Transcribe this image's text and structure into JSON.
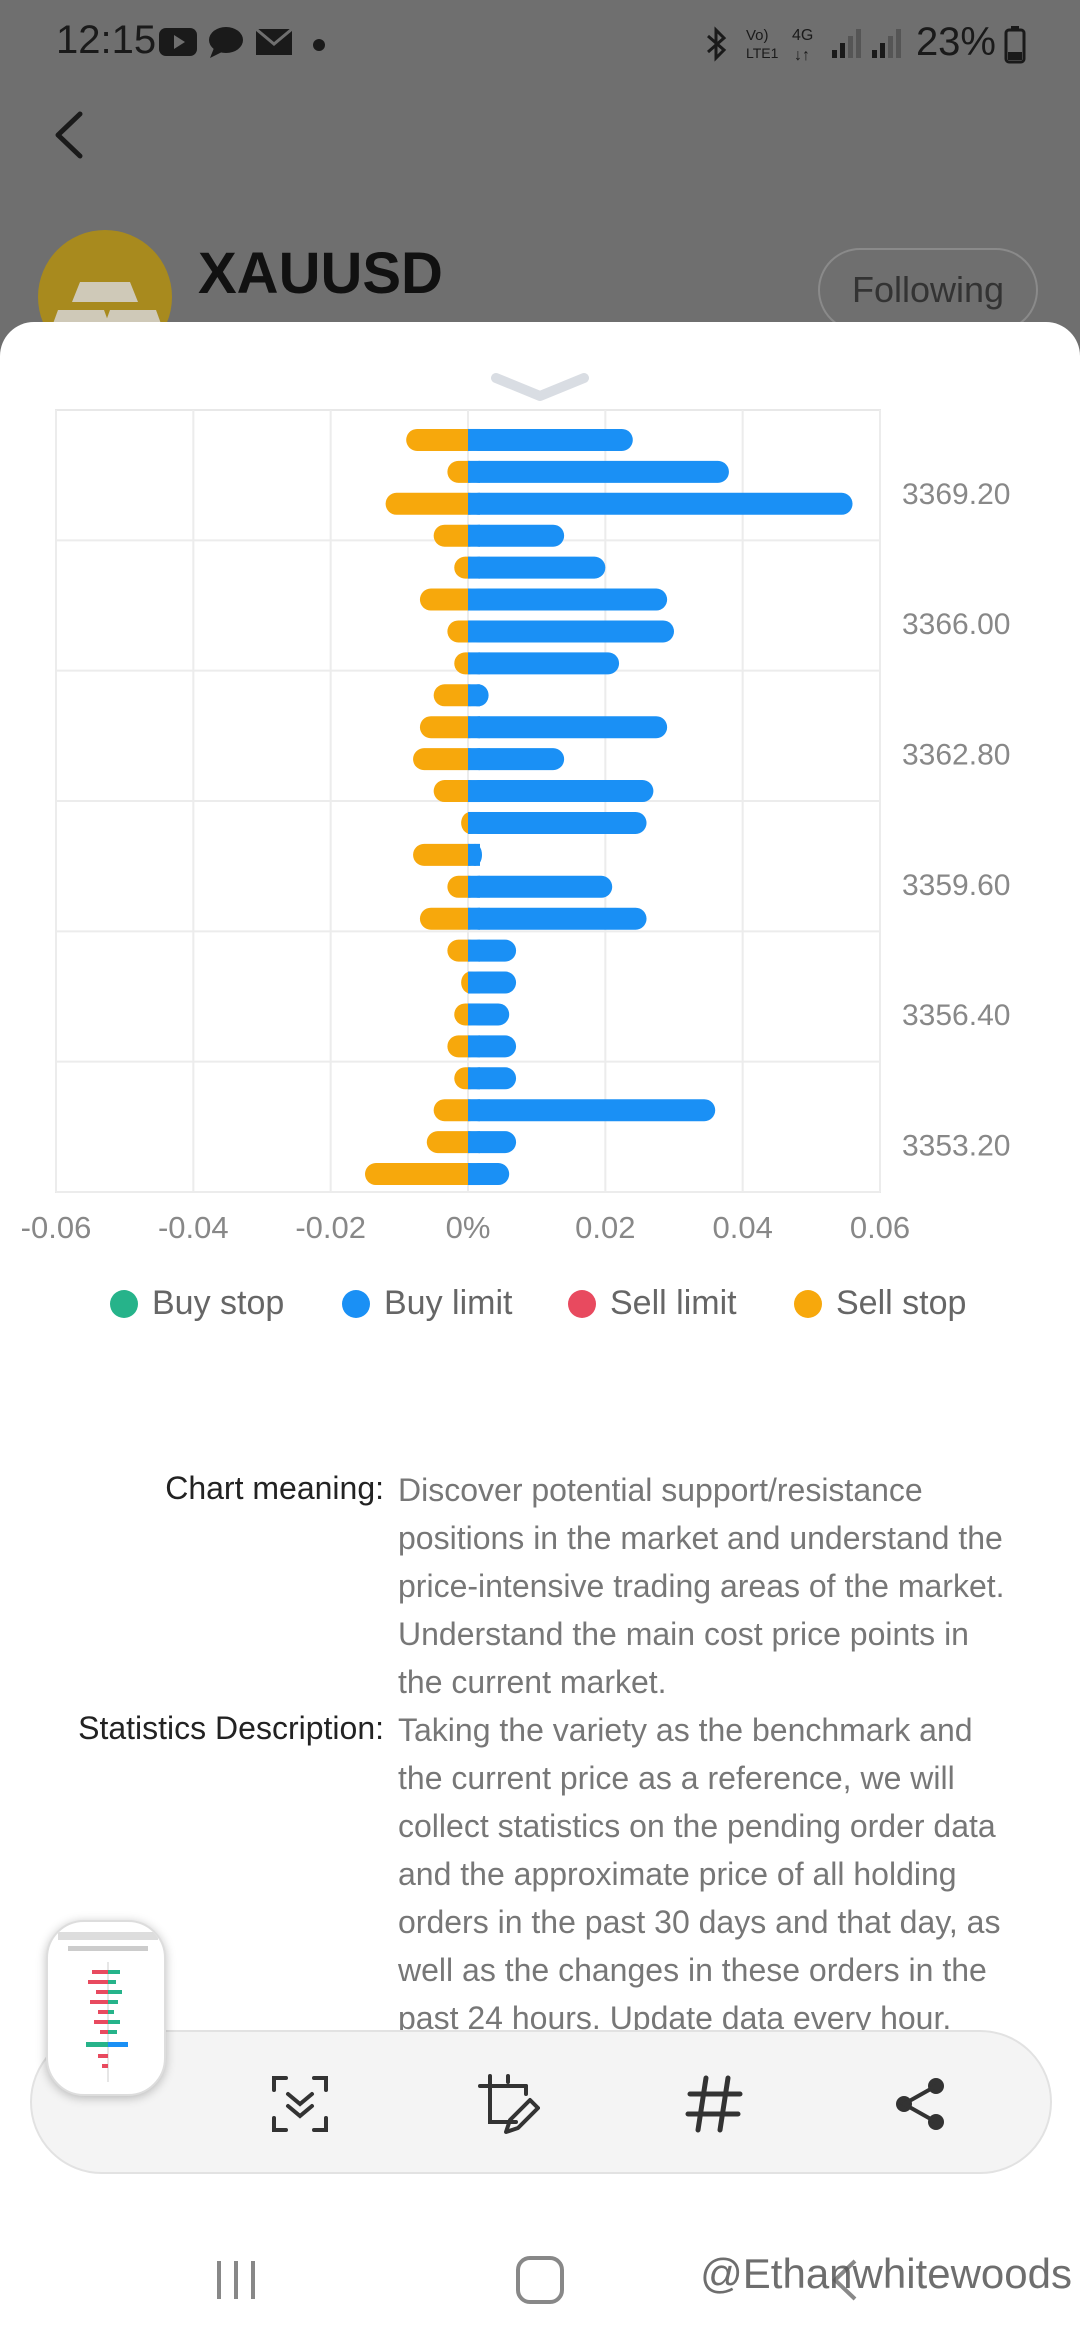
{
  "status_bar": {
    "time": "12:15",
    "battery": "23%",
    "network": "4G",
    "volte": "Vo) LTE1"
  },
  "header": {
    "symbol": "XAUUSD",
    "follow_label": "Following"
  },
  "chart_data": {
    "type": "bar",
    "orientation": "horizontal",
    "price_labels": [
      "3369.20",
      "3366.00",
      "3362.80",
      "3359.60",
      "3356.40",
      "3353.20"
    ],
    "x_ticks": [
      "-0.06",
      "-0.04",
      "-0.02",
      "0%",
      "0.02",
      "0.04",
      "0.06"
    ],
    "xlim": [
      -0.06,
      0.06
    ],
    "grid": true,
    "legend_position": "bottom",
    "series": [
      {
        "name": "Buy stop",
        "color": "#26b38a",
        "values": []
      },
      {
        "name": "Buy limit",
        "color": "#1a90f5",
        "values": [
          0.024,
          0.038,
          0.056,
          0.014,
          0.02,
          0.029,
          0.03,
          0.022,
          0.003,
          0.029,
          0.014,
          0.027,
          0.026,
          0.002,
          0.021,
          0.026,
          0.007,
          0.007,
          0.006,
          0.007,
          0.007,
          0.036,
          0.007,
          0.006
        ]
      },
      {
        "name": "Sell limit",
        "color": "#e84a5f",
        "values": []
      },
      {
        "name": "Sell stop",
        "color": "#f7a80c",
        "values": [
          -0.009,
          -0.003,
          -0.012,
          -0.005,
          -0.002,
          -0.007,
          -0.003,
          -0.002,
          -0.005,
          -0.007,
          -0.008,
          -0.005,
          -0.001,
          -0.008,
          -0.003,
          -0.007,
          -0.003,
          -0.001,
          -0.002,
          -0.003,
          -0.002,
          -0.005,
          -0.006,
          -0.015
        ]
      }
    ]
  },
  "description": {
    "chart_meaning_label": "Chart meaning:",
    "chart_meaning_text": "Discover potential support/resistance positions in the market and understand the price-intensive trading areas of the market. Understand the main cost price points in the current market.",
    "statistics_label": "Statistics Description:",
    "statistics_text": "Taking the variety as the benchmark and the current price as a reference, we will collect statistics on the pending order data and the approximate price of all holding orders in the past 30 days and that day, as well as the changes in these orders in the past 24 hours. Update data every hour."
  },
  "toolbar": {
    "icons": [
      "scroll-capture-icon",
      "crop-edit-icon",
      "tag-icon",
      "share-icon"
    ]
  },
  "watermark": "@Ethanwhitewoods",
  "colors": {
    "accent_blue": "#1a90f5",
    "accent_orange": "#f7a80c",
    "teal": "#26b38a",
    "red": "#e84a5f"
  }
}
